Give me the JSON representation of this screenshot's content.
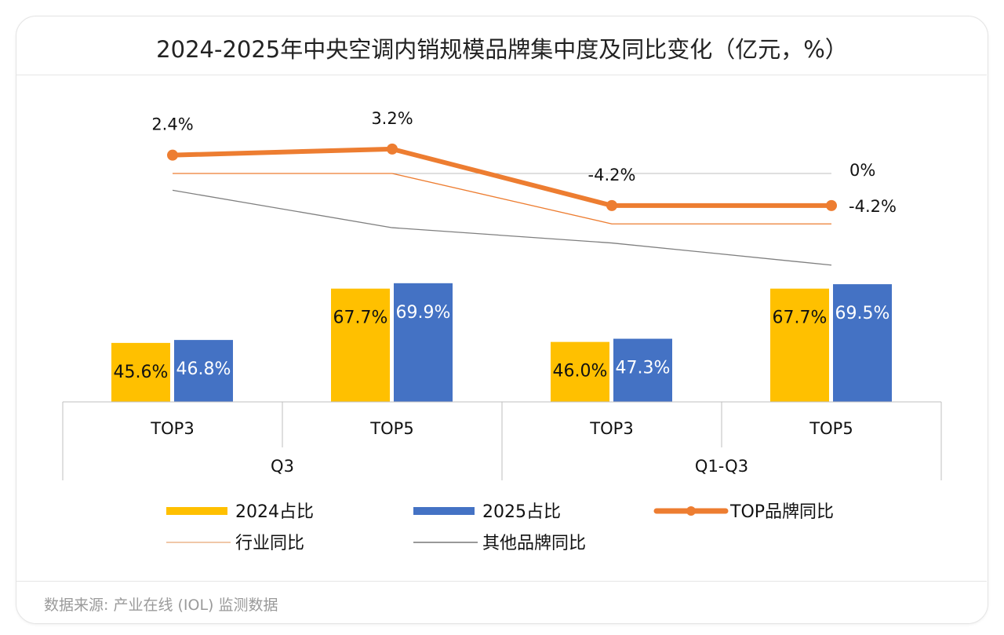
{
  "title": "2024-2025年中央空调内销规模品牌集中度及同比变化（亿元，%）",
  "source": "数据来源: 产业在线 (IOL) 监测数据",
  "chart_data": {
    "type": "bar+line",
    "title": "2024-2025年中央空调内销规模品牌集中度及同比变化（亿元，%）",
    "categories": [
      "TOP3",
      "TOP5",
      "TOP3",
      "TOP5"
    ],
    "groups": [
      {
        "label": "Q3",
        "span": 2
      },
      {
        "label": "Q1-Q3",
        "span": 2
      }
    ],
    "bar_series": [
      {
        "name": "2024占比",
        "color": "#FFC000",
        "values": [
          45.6,
          67.7,
          46.0,
          67.7
        ],
        "labels": [
          "45.6%",
          "67.7%",
          "46.0%",
          "67.7%"
        ]
      },
      {
        "name": "2025占比",
        "color": "#4472C4",
        "values": [
          46.8,
          69.9,
          47.3,
          69.5
        ],
        "labels": [
          "46.8%",
          "69.9%",
          "47.3%",
          "69.5%"
        ]
      }
    ],
    "bar_ylim": [
      21.6,
      80
    ],
    "line_series": [
      {
        "name": "TOP品牌同比",
        "color": "#ED7D31",
        "values": [
          2.4,
          3.2,
          -4.2,
          -4.2
        ],
        "labels": [
          "2.4%",
          "3.2%",
          "-4.2%",
          "-4.2%"
        ],
        "markers": true
      },
      {
        "name": "行业同比",
        "color": "#ED7D31",
        "values": [
          0,
          0,
          -6.6,
          -6.6
        ],
        "thin": true
      },
      {
        "name": "其他品牌同比",
        "color": "#7F7F7F",
        "values": [
          -2.2,
          -7.1,
          -9.1,
          -12.0
        ],
        "thin": true
      }
    ],
    "zero_line_label": "0%",
    "line_ylim": [
      -15,
      5
    ],
    "legend_position": "bottom",
    "grid": false
  }
}
